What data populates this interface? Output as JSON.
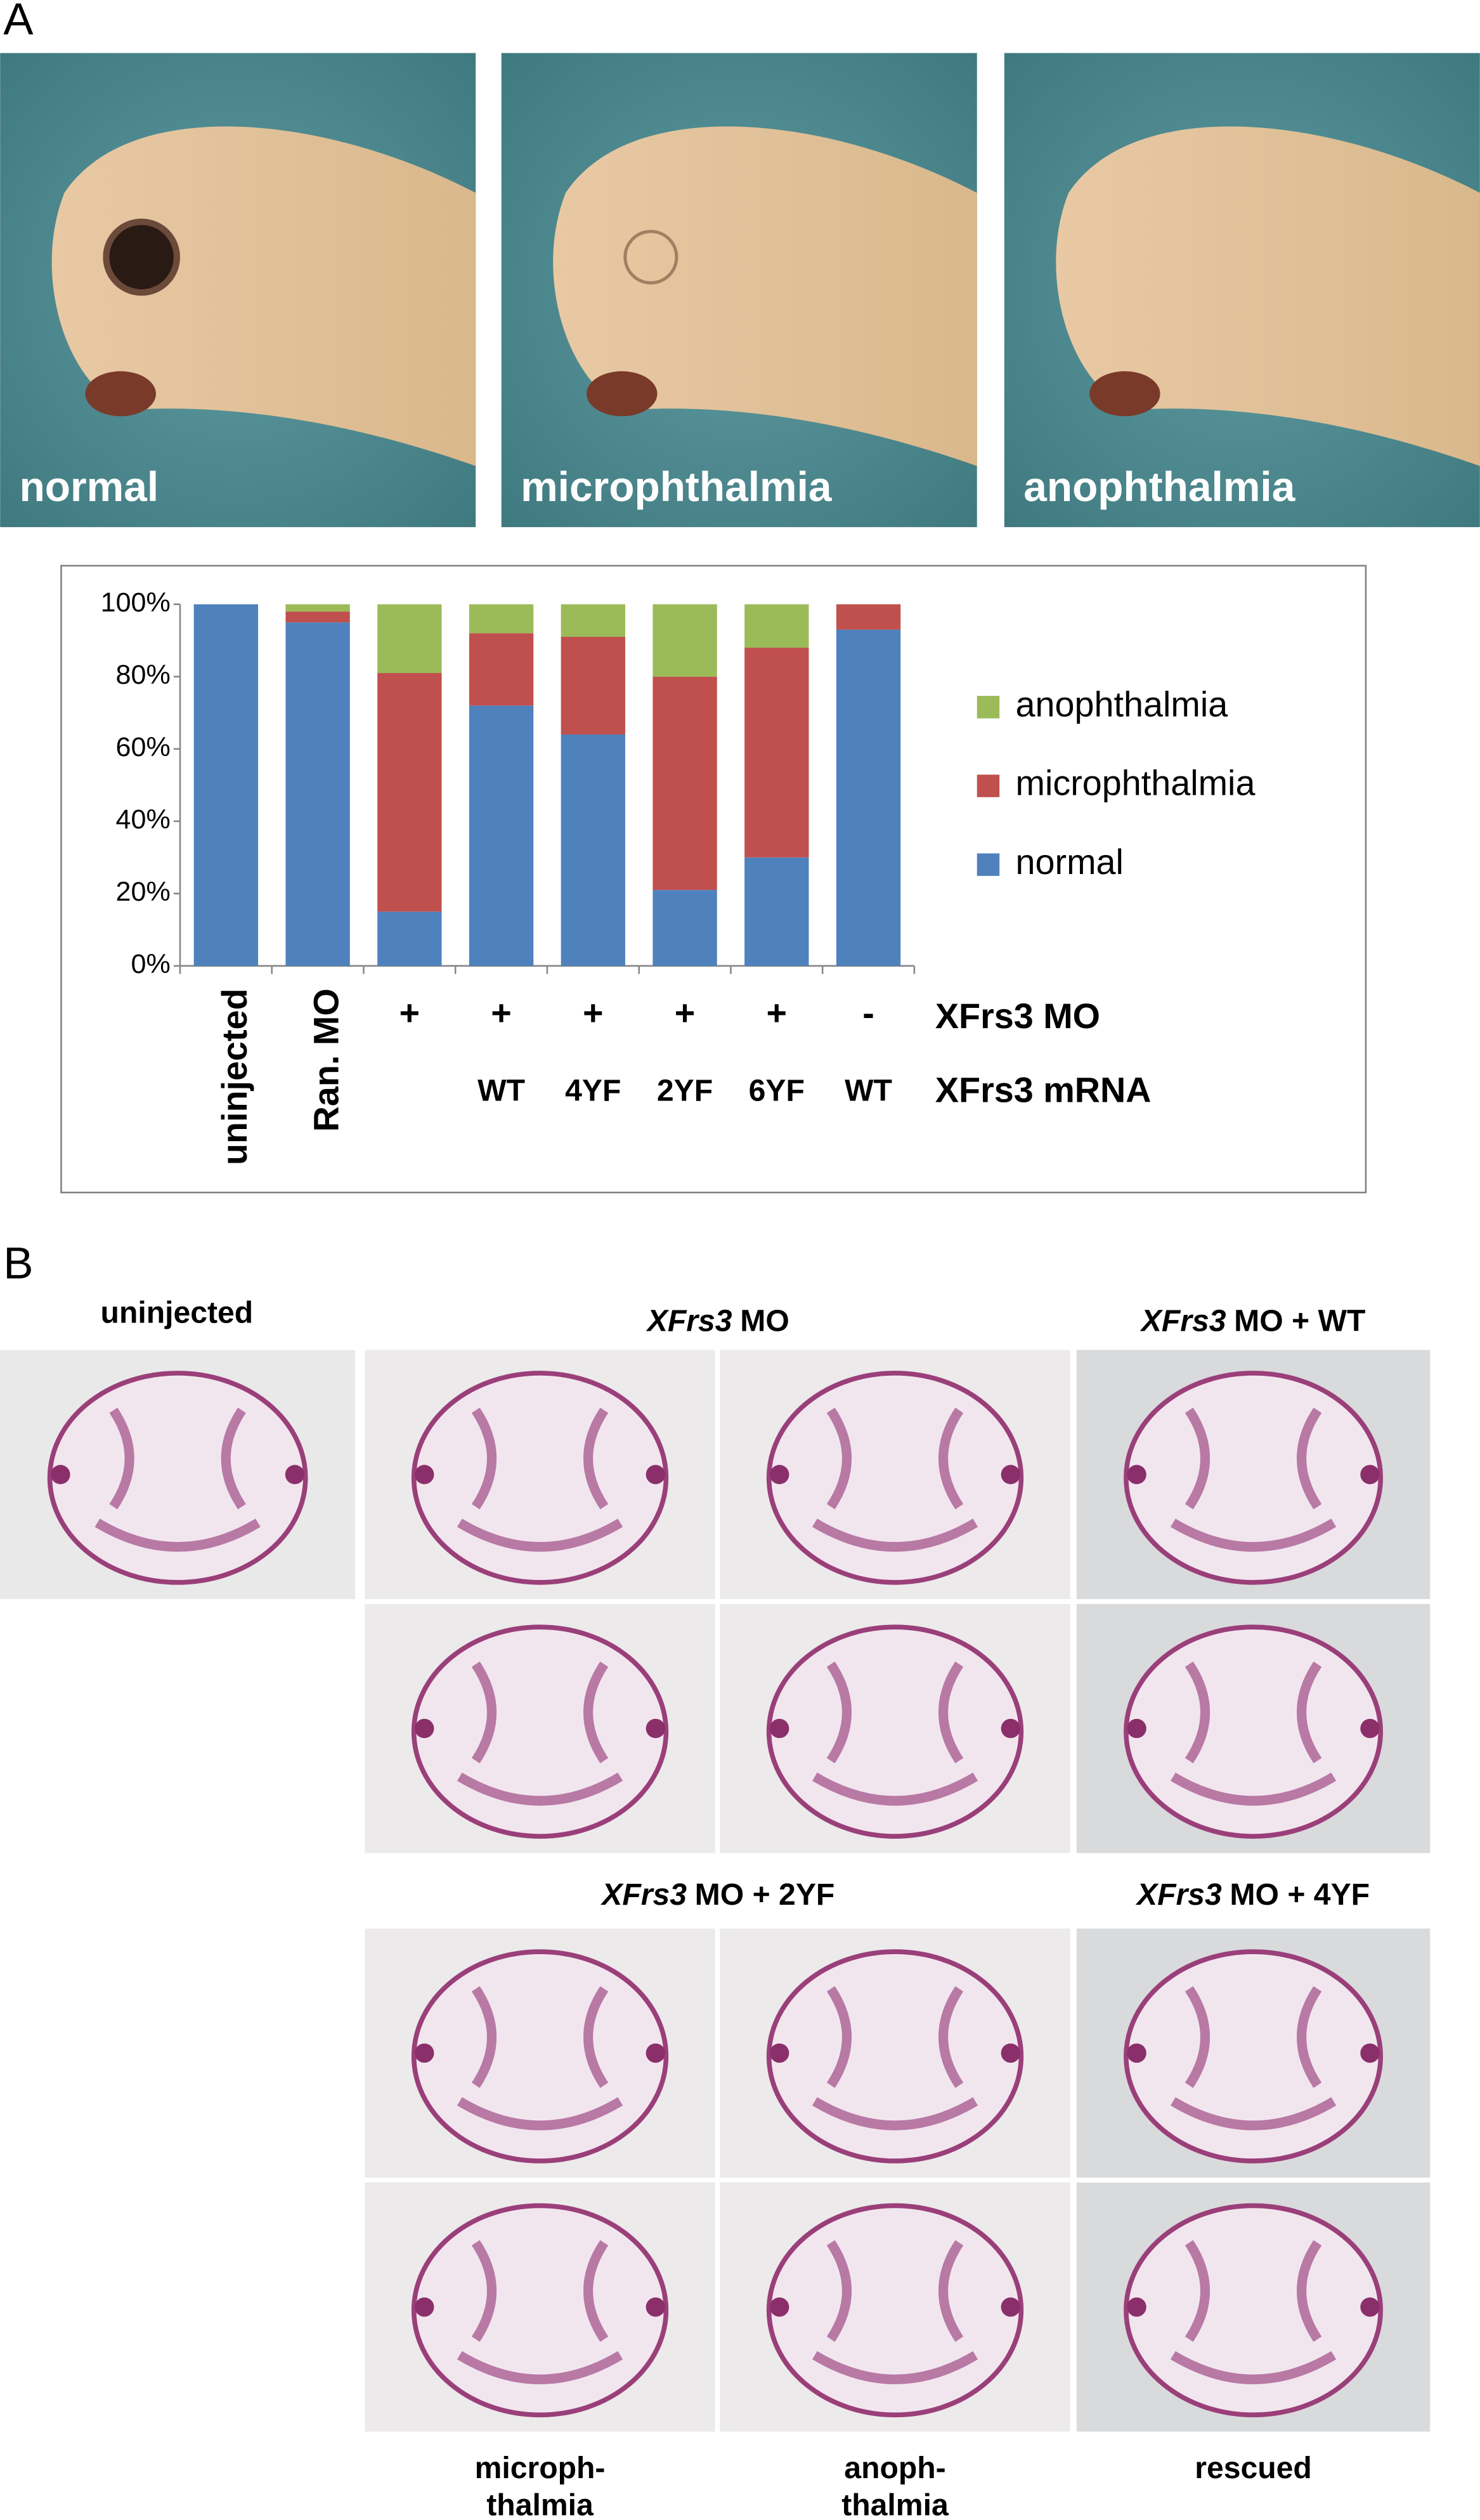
{
  "panel_a": {
    "label": "A",
    "photos": [
      "normal",
      "microphthalmia",
      "anophthalmia"
    ]
  },
  "chart_data": {
    "type": "stacked-bar",
    "categories": [
      "uninjected",
      "Ran. MO",
      null,
      null,
      null,
      null,
      null,
      null
    ],
    "mo_row": {
      "label": "XFrs3 MO",
      "values": [
        null,
        null,
        "+",
        "+",
        "+",
        "+",
        "+",
        "-"
      ]
    },
    "mrna_row": {
      "label": "XFrs3 mRNA",
      "values": [
        null,
        null,
        null,
        "WT",
        "4YF",
        "2YF",
        "6YF",
        "WT"
      ]
    },
    "series": [
      {
        "name": "normal",
        "color": "#4f81bd",
        "values": [
          100,
          95,
          15,
          72,
          64,
          21,
          30,
          93
        ]
      },
      {
        "name": "microphthalmia",
        "color": "#c0504d",
        "values": [
          0,
          3,
          66,
          20,
          27,
          59,
          58,
          7
        ]
      },
      {
        "name": "anophthalmia",
        "color": "#9bbb59",
        "values": [
          0,
          2,
          19,
          8,
          9,
          20,
          12,
          0
        ]
      }
    ],
    "ylim": [
      0,
      100
    ],
    "yticks": [
      {
        "value": 0,
        "label": "0%"
      },
      {
        "value": 20,
        "label": "20%"
      },
      {
        "value": 40,
        "label": "40%"
      },
      {
        "value": 60,
        "label": "60%"
      },
      {
        "value": 80,
        "label": "80%"
      },
      {
        "value": 100,
        "label": "100%"
      }
    ],
    "legend": "right"
  },
  "panel_b": {
    "label": "B",
    "headers": [
      {
        "italic": null,
        "rest": "uninjected"
      },
      {
        "italic": "XFrs3",
        "rest": "MO"
      },
      {
        "italic": "XFrs3",
        "rest": "MO + WT"
      },
      {
        "italic": "XFrs3",
        "rest": "MO + 2YF"
      },
      {
        "italic": "XFrs3",
        "rest": "MO + 4YF"
      }
    ],
    "footers": [
      [
        "microph-",
        "thalmia"
      ],
      [
        "anoph-",
        "thalmia"
      ],
      [
        "rescued"
      ]
    ]
  }
}
